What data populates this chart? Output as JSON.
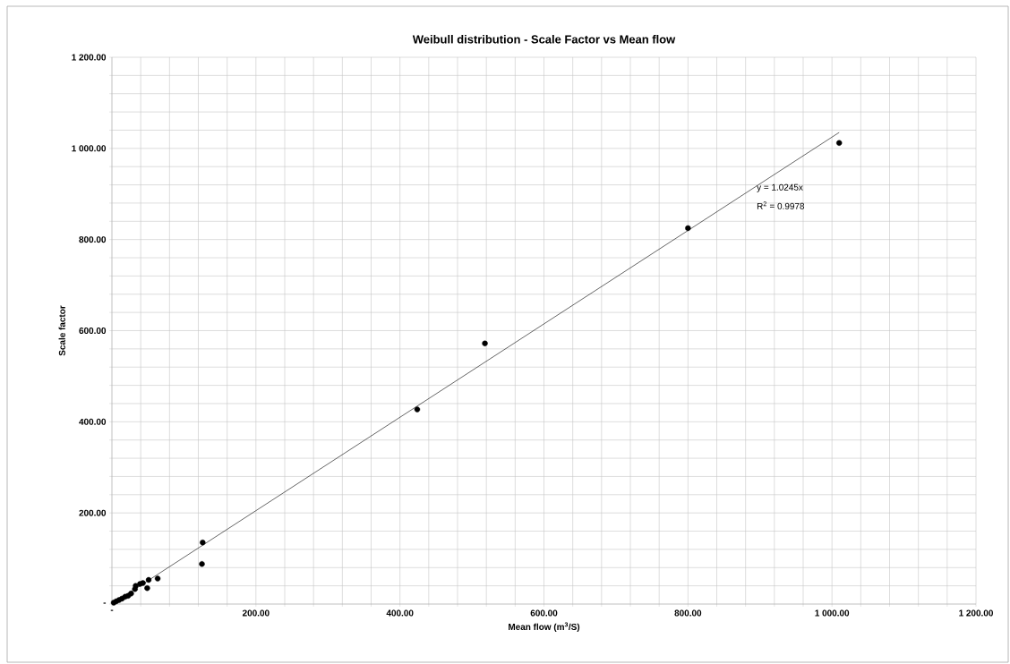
{
  "chart_data": {
    "type": "scatter",
    "title": "Weibull distribution - Scale Factor vs Mean flow",
    "xlabel": "Mean flow (m$^{3}$/S)",
    "ylabel": "Scale factor",
    "series": [
      {
        "color": "#000000",
        "marker": "circle",
        "x": [
          1010,
          800,
          518,
          424,
          126,
          125,
          63.5,
          51,
          49,
          43,
          39,
          33,
          32,
          26.6,
          22.5,
          18.4,
          14,
          10,
          6,
          2.5
        ],
        "values": [
          1012,
          825,
          572,
          427,
          135,
          88,
          56,
          53,
          35,
          46,
          44,
          40,
          33,
          23,
          18,
          16,
          12,
          9,
          6,
          3
        ]
      },
      {
        "type": "line",
        "color": "#000000",
        "marker": "none",
        "x": [
          0,
          1010
        ],
        "values": [
          0,
          1035
        ]
      }
    ],
    "annotations": [
      "y = 1.0245x",
      "R$^{2}$ = 0.9978"
    ],
    "xlim": [
      0,
      1200
    ],
    "ylim": [
      0,
      1200
    ],
    "xticks": [
      {
        "value": 0,
        "label": "-"
      },
      {
        "value": 40,
        "label": null
      },
      {
        "value": 80,
        "label": null
      },
      {
        "value": 120,
        "label": null
      },
      {
        "value": 160,
        "label": null
      },
      {
        "value": 200,
        "label": "200.00"
      },
      {
        "value": 240,
        "label": null
      },
      {
        "value": 280,
        "label": null
      },
      {
        "value": 320,
        "label": null
      },
      {
        "value": 360,
        "label": null
      },
      {
        "value": 400,
        "label": "400.00"
      },
      {
        "value": 440,
        "label": null
      },
      {
        "value": 480,
        "label": null
      },
      {
        "value": 520,
        "label": null
      },
      {
        "value": 560,
        "label": null
      },
      {
        "value": 600,
        "label": "600.00"
      },
      {
        "value": 640,
        "label": null
      },
      {
        "value": 680,
        "label": null
      },
      {
        "value": 720,
        "label": null
      },
      {
        "value": 760,
        "label": null
      },
      {
        "value": 800,
        "label": "800.00"
      },
      {
        "value": 840,
        "label": null
      },
      {
        "value": 880,
        "label": null
      },
      {
        "value": 920,
        "label": null
      },
      {
        "value": 960,
        "label": null
      },
      {
        "value": 1000,
        "label": "1 000.00"
      },
      {
        "value": 1040,
        "label": null
      },
      {
        "value": 1080,
        "label": null
      },
      {
        "value": 1120,
        "label": null
      },
      {
        "value": 1160,
        "label": null
      },
      {
        "value": 1200,
        "label": "1 200.00"
      }
    ],
    "yticks": [
      {
        "value": 0,
        "label": "-"
      },
      {
        "value": 40,
        "label": null
      },
      {
        "value": 80,
        "label": null
      },
      {
        "value": 120,
        "label": null
      },
      {
        "value": 160,
        "label": null
      },
      {
        "value": 200,
        "label": "200.00"
      },
      {
        "value": 240,
        "label": null
      },
      {
        "value": 280,
        "label": null
      },
      {
        "value": 320,
        "label": null
      },
      {
        "value": 360,
        "label": null
      },
      {
        "value": 400,
        "label": "400.00"
      },
      {
        "value": 440,
        "label": null
      },
      {
        "value": 480,
        "label": null
      },
      {
        "value": 520,
        "label": null
      },
      {
        "value": 560,
        "label": null
      },
      {
        "value": 600,
        "label": "600.00"
      },
      {
        "value": 640,
        "label": null
      },
      {
        "value": 680,
        "label": null
      },
      {
        "value": 720,
        "label": null
      },
      {
        "value": 760,
        "label": null
      },
      {
        "value": 800,
        "label": "800.00"
      },
      {
        "value": 840,
        "label": null
      },
      {
        "value": 880,
        "label": null
      },
      {
        "value": 920,
        "label": null
      },
      {
        "value": 960,
        "label": null
      },
      {
        "value": 1000,
        "label": "1 000.00"
      },
      {
        "value": 1040,
        "label": null
      },
      {
        "value": 1080,
        "label": null
      },
      {
        "value": 1120,
        "label": null
      },
      {
        "value": 1160,
        "label": null
      },
      {
        "value": 1200,
        "label": "1 200.00"
      }
    ],
    "grid": true,
    "legend": false
  }
}
